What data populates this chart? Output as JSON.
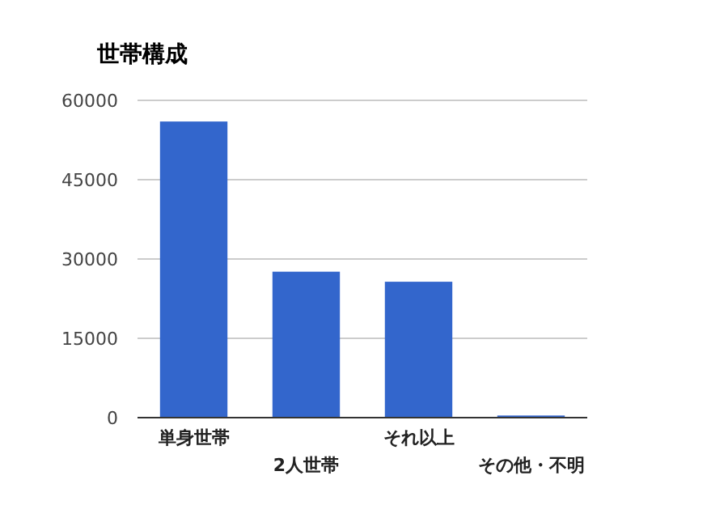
{
  "chart_data": {
    "type": "bar",
    "title": "世帯構成",
    "categories": [
      "単身世帯",
      "2人世帯",
      "それ以上",
      "その他・不明"
    ],
    "values": [
      56000,
      27600,
      25700,
      400
    ],
    "color": "#3366cc",
    "ylim": [
      0,
      60000
    ],
    "yticks": [
      0,
      15000,
      30000,
      45000,
      60000
    ],
    "grid": "y"
  }
}
